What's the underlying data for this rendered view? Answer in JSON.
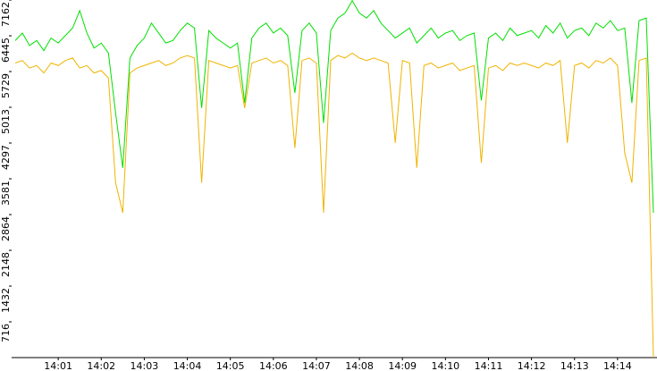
{
  "chart_data": {
    "type": "line",
    "categories": [
      null,
      null,
      null,
      null,
      null,
      null,
      "14:01",
      null,
      null,
      null,
      null,
      null,
      "14:02",
      null,
      null,
      null,
      null,
      null,
      "14:03",
      null,
      null,
      null,
      null,
      null,
      "14:04",
      null,
      null,
      null,
      null,
      null,
      "14:05",
      null,
      null,
      null,
      null,
      null,
      "14:06",
      null,
      null,
      null,
      null,
      null,
      "14:07",
      null,
      null,
      null,
      null,
      null,
      "14:08",
      null,
      null,
      null,
      null,
      null,
      "14:09",
      null,
      null,
      null,
      null,
      null,
      "14:10",
      null,
      null,
      null,
      null,
      null,
      "14:11",
      null,
      null,
      null,
      null,
      null,
      "14:12",
      null,
      null,
      null,
      null,
      null,
      "14:13",
      null,
      null,
      null,
      null,
      null,
      "14:14",
      null,
      null,
      null,
      null,
      null
    ],
    "series": [
      {
        "color": "#f0b400",
        "values": [
          5900,
          5950,
          5800,
          5850,
          5700,
          5900,
          5850,
          5950,
          6000,
          5800,
          5850,
          5700,
          5750,
          5600,
          3500,
          2900,
          5700,
          5800,
          5850,
          5900,
          5950,
          5850,
          5900,
          6000,
          6050,
          6000,
          3500,
          5950,
          5900,
          5850,
          5800,
          5850,
          5000,
          5900,
          5950,
          6000,
          5900,
          5950,
          5850,
          4200,
          5950,
          6000,
          5900,
          2900,
          5950,
          6050,
          6000,
          6100,
          6000,
          5950,
          6000,
          5950,
          5900,
          4300,
          5950,
          5900,
          3800,
          5850,
          5900,
          5800,
          5850,
          5900,
          5750,
          5800,
          5850,
          3900,
          5800,
          5850,
          5750,
          5900,
          5850,
          5900,
          5850,
          5800,
          5900,
          5850,
          5950,
          4300,
          5850,
          5900,
          5800,
          5950,
          5900,
          6000,
          5850,
          4100,
          3500,
          5950,
          6000,
          0
        ]
      },
      {
        "color": "#00e000",
        "values": [
          6350,
          6500,
          6250,
          6350,
          6150,
          6400,
          6300,
          6450,
          6600,
          6950,
          6500,
          6200,
          6300,
          6100,
          4900,
          3800,
          6000,
          6250,
          6400,
          6700,
          6500,
          6300,
          6350,
          6550,
          6700,
          6600,
          5000,
          6550,
          6400,
          6300,
          6200,
          6300,
          5100,
          6400,
          6600,
          6700,
          6500,
          6600,
          6450,
          5300,
          6550,
          6700,
          6500,
          4700,
          6550,
          6800,
          6900,
          7150,
          6900,
          6800,
          6950,
          6700,
          6550,
          6400,
          6500,
          6600,
          6300,
          6450,
          6600,
          6400,
          6500,
          6550,
          6350,
          6450,
          6500,
          5150,
          6400,
          6500,
          6350,
          6600,
          6450,
          6500,
          6550,
          6400,
          6650,
          6500,
          6700,
          6400,
          6550,
          6600,
          6450,
          6700,
          6600,
          6750,
          6550,
          6600,
          5100,
          6750,
          6800,
          2900
        ]
      }
    ],
    "ylim": [
      0,
      7162
    ],
    "yticks": [
      716,
      1432,
      2148,
      2864,
      3581,
      4297,
      5013,
      5729,
      6445,
      7162
    ]
  }
}
